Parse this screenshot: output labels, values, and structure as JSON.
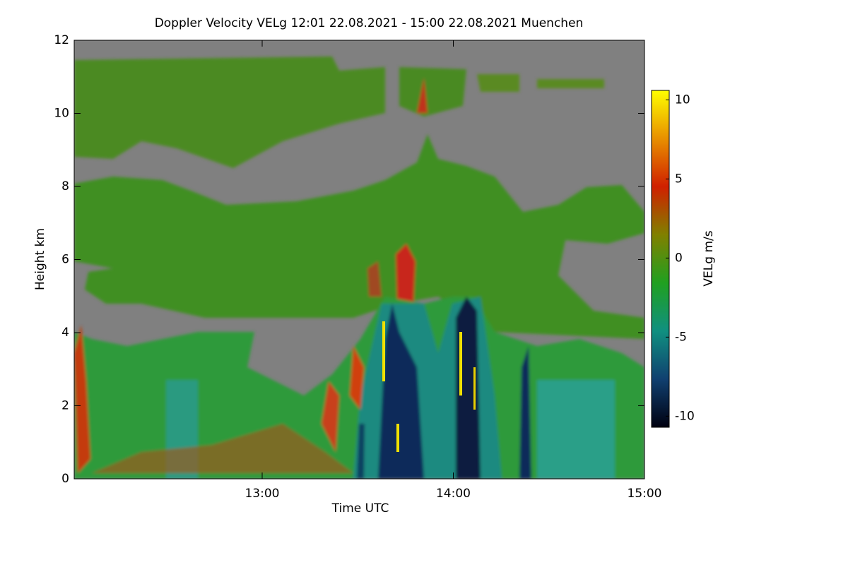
{
  "chart_data": {
    "type": "heatmap",
    "title": "Doppler Velocity VELg   12:01 22.08.2021 - 15:00 22.08.2021 Muenchen",
    "xlabel": "Time UTC",
    "ylabel": "Height km",
    "xlim": [
      12.0167,
      15.0
    ],
    "xticks": [
      {
        "value": 13,
        "label": "13:00"
      },
      {
        "value": 14,
        "label": "14:00"
      },
      {
        "value": 15,
        "label": "15:00"
      }
    ],
    "ylim": [
      0,
      12
    ],
    "yticks": [
      0,
      2,
      4,
      6,
      8,
      10,
      12
    ],
    "colorbar": {
      "label": "VELg m/s",
      "lim": [
        -10.7,
        10.6
      ],
      "ticks": [
        10,
        5,
        0,
        -5,
        -10
      ],
      "colors": [
        "#ffff00",
        "#e89000",
        "#d02000",
        "#808000",
        "#20a020",
        "#109080",
        "#104070",
        "#000010"
      ]
    }
  }
}
